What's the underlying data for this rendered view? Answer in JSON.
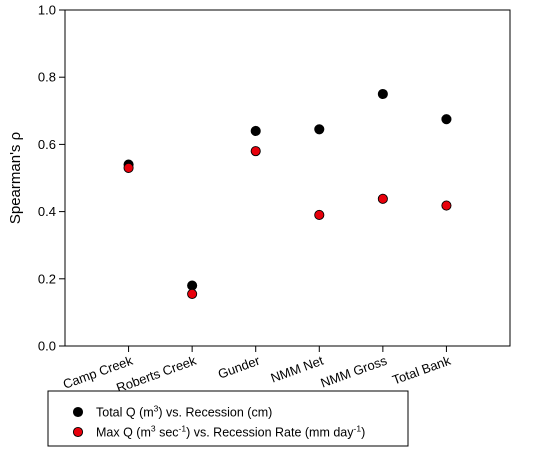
{
  "chart_data": {
    "type": "scatter",
    "categories": [
      "Camp Creek",
      "Roberts Creek",
      "Gunder",
      "NMM Net",
      "NMM Gross",
      "Total Bank"
    ],
    "series": [
      {
        "name": "Total Q (m3) vs. Recession (cm)",
        "legend_parts": [
          "Total Q (m",
          "3",
          ") vs. Recession (cm)"
        ],
        "color": "#000000",
        "values": [
          0.54,
          0.18,
          0.64,
          0.645,
          0.75,
          0.675
        ]
      },
      {
        "name": "Max Q (m3 sec-1) vs. Recession Rate (mm day-1)",
        "legend_parts": [
          "Max Q (m",
          "3",
          " sec",
          "-1",
          ") vs. Recession Rate (mm day",
          "-1",
          ")"
        ],
        "color": "#e8000b",
        "values": [
          0.53,
          0.155,
          0.58,
          0.39,
          0.438,
          0.418
        ]
      }
    ],
    "ylabel": "Spearman's ρ",
    "xlabel": "",
    "ylim": [
      0.0,
      1.0
    ],
    "yticks": [
      "0.0",
      "0.2",
      "0.4",
      "0.6",
      "0.8",
      "1.0"
    ],
    "grid": false,
    "legend_position": "bottom-outside"
  }
}
